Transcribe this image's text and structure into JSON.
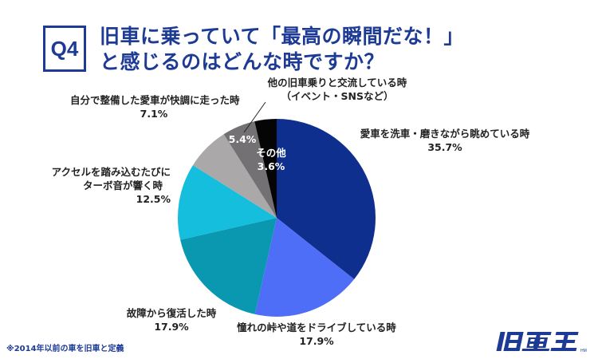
{
  "header": {
    "question_badge": "Q4",
    "title_line1": "旧車に乗っていて「最高の瞬間だな！」",
    "title_line2": "と感じるのはどんな時ですか？"
  },
  "chart_data": {
    "type": "pie",
    "title": "旧車に乗っていて「最高の瞬間だな！」と感じるのはどんな時ですか？",
    "start_angle": "12 o'clock, clockwise",
    "categories": [
      "愛車を洗車・磨きながら眺めている時",
      "憧れの峠や道をドライブしている時",
      "故障から復活した時",
      "アクセルを踏み込むたびにターボ音が響く時",
      "自分で整備した愛車が快調に走った時",
      "他の旧車乗りと交流している時（イベント・SNSなど）",
      "その他"
    ],
    "values": [
      35.7,
      17.9,
      17.9,
      12.5,
      7.1,
      5.4,
      3.6
    ],
    "colors": [
      "#0f2f8f",
      "#4f6ef7",
      "#0a97b0",
      "#14bedc",
      "#aaa8a9",
      "#737174",
      "#050505"
    ],
    "unit": "%"
  },
  "labels": {
    "s1": {
      "name": "愛車を洗車・磨きながら眺めている時",
      "value": "35.7%"
    },
    "s2": {
      "name": "憧れの峠や道をドライブしている時",
      "value": "17.9%"
    },
    "s3": {
      "name": "故障から復活した時",
      "value": "17.9%"
    },
    "s4": {
      "line1": "アクセルを踏み込むたびに",
      "line2": "ターボ音が響く時",
      "value": "12.5%"
    },
    "s5": {
      "name": "自分で整備した愛車が快調に走った時",
      "value": "7.1%"
    },
    "s6": {
      "line1": "他の旧車乗りと交流している時",
      "line2": "（イベント・SNSなど）",
      "value": "5.4%"
    },
    "s7": {
      "name": "その他",
      "value": "3.6%"
    }
  },
  "footer": {
    "note": "※2014年以前の車を旧車と定義",
    "logo_text": "旧車王"
  }
}
